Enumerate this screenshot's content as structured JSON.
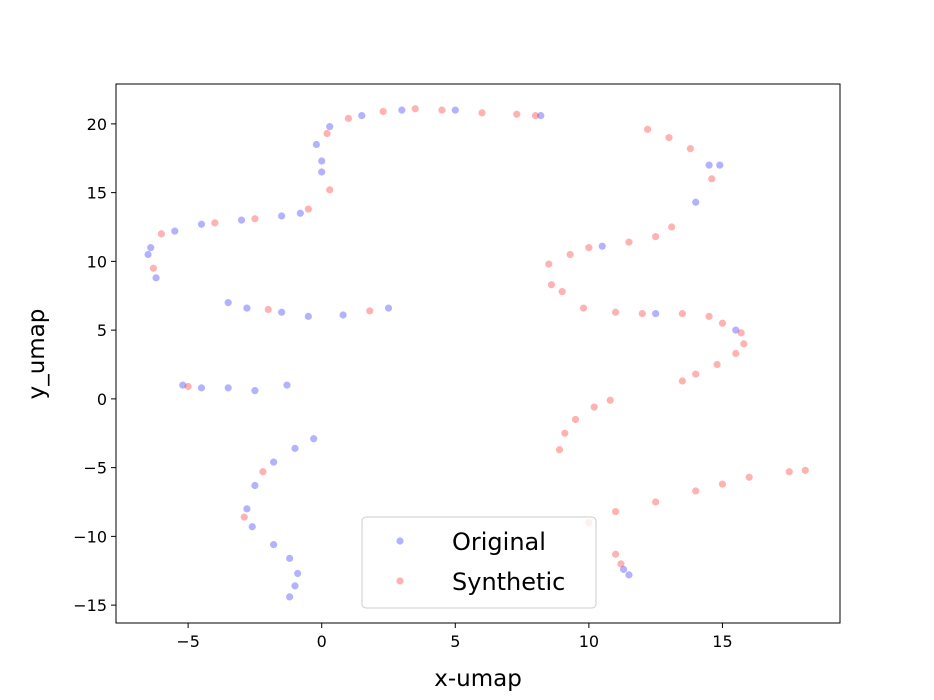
{
  "chart_data": {
    "type": "scatter",
    "x_label": "x-umap",
    "y_label": "y_umap",
    "xlim": [
      -7.7,
      19.4
    ],
    "ylim": [
      -16.3,
      22.9
    ],
    "xticks": [
      {
        "value": -5,
        "label": "−5"
      },
      0,
      5,
      10,
      15
    ],
    "yticks": [
      {
        "value": -15,
        "label": "−15"
      },
      {
        "value": -10,
        "label": "−10"
      },
      {
        "value": -5,
        "label": "−5"
      },
      0,
      5,
      10,
      15,
      20
    ],
    "legend": "lower center",
    "series": [
      {
        "name": "Original",
        "color": "#0000ff",
        "x": [
          -6.2,
          -6.5,
          -6.4,
          -5.5,
          -4.5,
          -3,
          -1.5,
          -0.8,
          0,
          0,
          -0.2,
          0.3,
          1.5,
          3,
          5,
          8.2,
          14.5,
          14,
          10.5,
          -3.5,
          -2.8,
          -1.5,
          -0.5,
          0.8,
          2.5,
          -5.2,
          -4.5,
          -3.5,
          -2.5,
          -1.3,
          -0.3,
          -1,
          -1.8,
          -2.5,
          -2.8,
          -2.6,
          -1.8,
          -1.2,
          -0.9,
          -1,
          -1.2,
          11.5,
          11.3,
          12.5,
          15.5,
          14.9
        ],
        "y": [
          8.8,
          10.5,
          11,
          12.2,
          12.7,
          13,
          13.3,
          13.5,
          16.5,
          17.3,
          18.5,
          19.8,
          20.6,
          21,
          21,
          20.6,
          17,
          14.3,
          11.1,
          7,
          6.6,
          6.3,
          6,
          6.1,
          6.6,
          1,
          0.8,
          0.8,
          0.6,
          1,
          -2.9,
          -3.6,
          -4.6,
          -6.3,
          -8,
          -9.3,
          -10.6,
          -11.6,
          -12.7,
          -13.6,
          -14.4,
          -12.8,
          -12.4,
          6.2,
          5,
          17
        ]
      },
      {
        "name": "Synthetic",
        "color": "#ff0000",
        "x": [
          -6.3,
          -6,
          -4,
          -2.5,
          -0.5,
          0.3,
          0.2,
          1,
          2.3,
          3.5,
          4.5,
          6,
          7.3,
          8,
          12.2,
          13,
          13.8,
          14.6,
          8.5,
          9.3,
          10,
          11.5,
          12.5,
          13.1,
          8.6,
          9,
          9.8,
          11,
          12,
          13.5,
          14.5,
          15,
          15.7,
          15.8,
          15.5,
          14.8,
          14,
          13.5,
          -2,
          -5,
          -2.9,
          -2.2,
          10.8,
          10.2,
          9.5,
          9.1,
          8.9,
          10,
          11,
          12.5,
          14,
          15,
          16,
          17.5,
          18.1,
          11,
          11.2,
          1.8
        ],
        "y": [
          9.5,
          12,
          12.8,
          13.1,
          13.8,
          15.2,
          19.3,
          20.4,
          20.9,
          21.1,
          21,
          20.8,
          20.7,
          20.6,
          19.6,
          19,
          18.2,
          16,
          9.8,
          10.5,
          11,
          11.4,
          11.8,
          12.5,
          8.3,
          7.8,
          6.6,
          6.3,
          6.2,
          6.2,
          6,
          5.5,
          4.8,
          4,
          3.3,
          2.5,
          1.8,
          1.3,
          6.5,
          0.9,
          -8.6,
          -5.3,
          -0.1,
          -0.6,
          -1.5,
          -2.5,
          -3.7,
          -9,
          -8.2,
          -7.5,
          -6.7,
          -6.2,
          -5.7,
          -5.3,
          -5.2,
          -11.3,
          -12,
          6.4
        ]
      }
    ]
  }
}
